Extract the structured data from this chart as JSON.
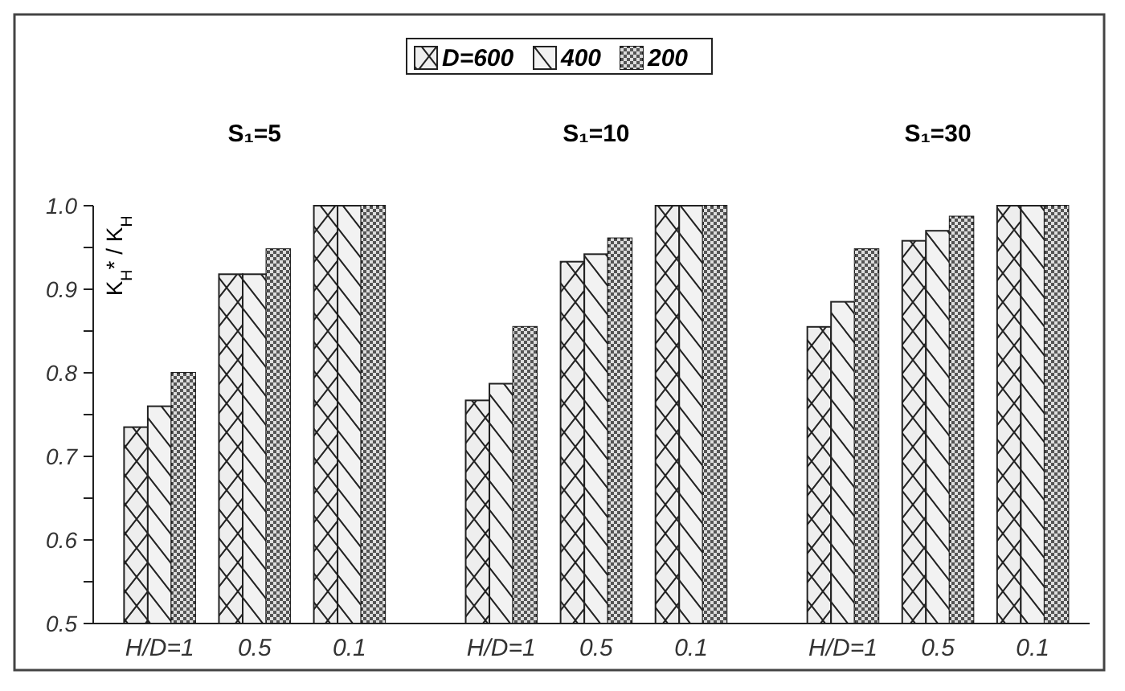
{
  "chart_data": {
    "type": "bar",
    "categories": [
      "H/D=1",
      "0.5",
      "0.1",
      "H/D=1",
      "0.5",
      "0.1",
      "H/D=1",
      "0.5",
      "0.1"
    ],
    "series": [
      {
        "name": "D=600",
        "color": "#eeeeee",
        "values": [
          0.735,
          0.918,
          1.0,
          0.767,
          0.933,
          1.0,
          0.855,
          0.958,
          1.0
        ]
      },
      {
        "name": "400",
        "color": "#f2f2f2",
        "values": [
          0.76,
          0.918,
          1.0,
          0.787,
          0.942,
          1.0,
          0.885,
          0.97,
          1.0
        ]
      },
      {
        "name": "200",
        "color": "#555555",
        "values": [
          0.8,
          0.948,
          1.0,
          0.855,
          0.961,
          1.0,
          0.948,
          0.987,
          1.0
        ]
      }
    ],
    "ylabel": "K$_{H}$* / K$_{H}$",
    "annotations": [
      "S₁=5",
      "S₁=10",
      "S₁=30"
    ],
    "ylim": [
      0.5,
      1.0
    ],
    "yticks": [
      {
        "value": 0.5,
        "label": "0.5"
      },
      {
        "value": 0.55,
        "label": null
      },
      {
        "value": 0.6,
        "label": "0.6"
      },
      {
        "value": 0.65,
        "label": null
      },
      {
        "value": 0.7,
        "label": "0.7"
      },
      {
        "value": 0.75,
        "label": null
      },
      {
        "value": 0.8,
        "label": "0.8"
      },
      {
        "value": 0.85,
        "label": null
      },
      {
        "value": 0.9,
        "label": "0.9"
      },
      {
        "value": 0.95,
        "label": null
      },
      {
        "value": 1.0,
        "label": "1.0"
      }
    ],
    "legend": "top",
    "grid": false
  }
}
